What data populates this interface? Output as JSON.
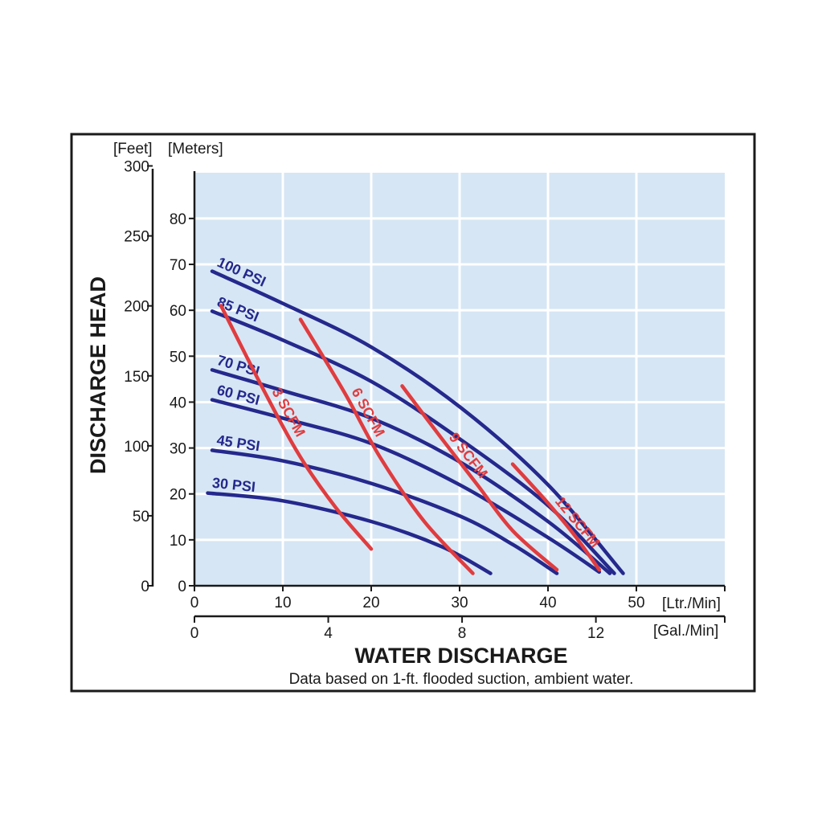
{
  "chart_data": {
    "type": "line",
    "title": "",
    "xlabel": "WATER DISCHARGE",
    "ylabel": "DISCHARGE HEAD",
    "note": "Data based on 1-ft. flooded suction, ambient water.",
    "x_primary": {
      "unit": "[Ltr./Min]",
      "ticks": [
        "0",
        "10",
        "20",
        "30",
        "40",
        "50"
      ],
      "range": [
        0,
        60
      ]
    },
    "x_secondary": {
      "unit": "[Gal./Min]",
      "ticks": [
        "0",
        "4",
        "8",
        "12"
      ],
      "values_lpm": [
        0,
        15.14,
        30.28,
        45.42
      ]
    },
    "y_meters": {
      "unit": "[Meters]",
      "ticks": [
        "0",
        "10",
        "20",
        "30",
        "40",
        "50",
        "60",
        "70",
        "80"
      ],
      "range": [
        0,
        90
      ]
    },
    "y_feet": {
      "unit": "[Feet]",
      "ticks": [
        "0",
        "50",
        "100",
        "150",
        "200",
        "250",
        "300"
      ],
      "values_m": [
        0,
        15.24,
        30.48,
        45.72,
        60.96,
        76.2,
        91.44
      ]
    },
    "grid": true,
    "colors": {
      "pressure": "#25288c",
      "air": "#e03c3f",
      "plot_bg": "#d6e6f4",
      "grid": "#ffffff"
    },
    "pressure_curves": [
      {
        "label": "100 PSI",
        "points": [
          [
            2,
            68.5
          ],
          [
            10,
            61.5
          ],
          [
            20,
            52
          ],
          [
            30,
            39
          ],
          [
            40,
            22
          ],
          [
            48.5,
            2.7
          ]
        ]
      },
      {
        "label": "85 PSI",
        "points": [
          [
            2,
            59.8
          ],
          [
            10,
            53.5
          ],
          [
            20,
            44.5
          ],
          [
            30,
            32
          ],
          [
            40,
            17.5
          ],
          [
            47.5,
            2.7
          ]
        ]
      },
      {
        "label": "70 PSI",
        "points": [
          [
            2,
            47
          ],
          [
            10,
            42.5
          ],
          [
            20,
            36.5
          ],
          [
            30,
            27
          ],
          [
            40,
            14
          ],
          [
            47,
            2.7
          ]
        ]
      },
      {
        "label": "60 PSI",
        "points": [
          [
            2,
            40.5
          ],
          [
            10,
            36.5
          ],
          [
            20,
            31
          ],
          [
            30,
            22
          ],
          [
            40,
            10.5
          ],
          [
            45.8,
            3
          ]
        ]
      },
      {
        "label": "45 PSI",
        "points": [
          [
            2,
            29.5
          ],
          [
            10,
            27.2
          ],
          [
            20,
            22.3
          ],
          [
            30,
            15.2
          ],
          [
            36,
            9
          ],
          [
            41,
            2.7
          ]
        ]
      },
      {
        "label": "30 PSI",
        "points": [
          [
            1.5,
            20.2
          ],
          [
            10,
            18.5
          ],
          [
            20,
            14
          ],
          [
            28,
            8.5
          ],
          [
            33.5,
            2.7
          ]
        ]
      }
    ],
    "air_curves": [
      {
        "label": "3 SCFM",
        "points": [
          [
            3,
            61
          ],
          [
            8,
            42
          ],
          [
            12,
            28
          ],
          [
            16,
            17
          ],
          [
            20,
            8
          ]
        ]
      },
      {
        "label": "6 SCFM",
        "points": [
          [
            12,
            58
          ],
          [
            17,
            42
          ],
          [
            21,
            28
          ],
          [
            26,
            14
          ],
          [
            31.5,
            2.7
          ]
        ]
      },
      {
        "label": "9 SCFM",
        "points": [
          [
            23.5,
            43.5
          ],
          [
            28,
            32
          ],
          [
            32,
            22
          ],
          [
            36,
            12
          ],
          [
            41,
            3.5
          ]
        ]
      },
      {
        "label": "12 SCFM",
        "points": [
          [
            36,
            26.5
          ],
          [
            40,
            18
          ],
          [
            43,
            11
          ],
          [
            45.8,
            3.5
          ]
        ]
      }
    ]
  }
}
